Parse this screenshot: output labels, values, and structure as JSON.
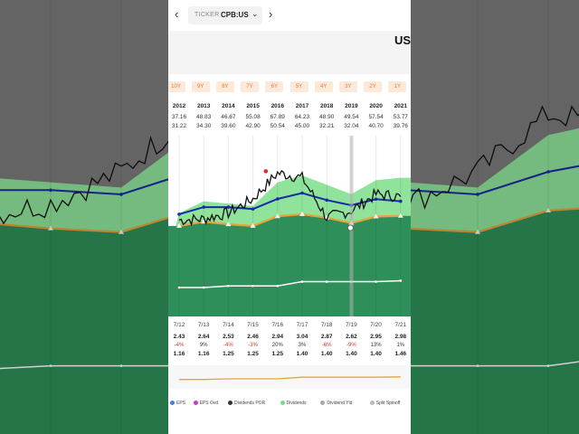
{
  "ticker": {
    "label": "TICKER",
    "value": "CPB:US"
  },
  "currency": "USD",
  "nav": {
    "prev": "‹",
    "next": "›",
    "caret": "⌄"
  },
  "chips": [
    "10Y",
    "9Y",
    "8Y",
    "7Y",
    "6Y",
    "5Y",
    "4Y",
    "3Y",
    "2Y",
    "1Y"
  ],
  "years": [
    "2012",
    "2013",
    "2014",
    "2015",
    "2016",
    "2017",
    "2018",
    "2019",
    "2020",
    "2021"
  ],
  "highs": [
    "37.16",
    "48.83",
    "46.67",
    "55.08",
    "67.89",
    "64.23",
    "48.90",
    "49.54",
    "57.54",
    "53.77"
  ],
  "lows": [
    "31.22",
    "34.30",
    "39.60",
    "42.90",
    "50.54",
    "45.00",
    "32.21",
    "32.04",
    "40.70",
    "39.76"
  ],
  "fiscal_dates": [
    "7/12",
    "7/13",
    "7/14",
    "7/15",
    "7/16",
    "7/17",
    "7/18",
    "7/19",
    "7/20",
    "7/21"
  ],
  "eps": [
    "2.43",
    "2.64",
    "2.53",
    "2.46",
    "2.94",
    "3.04",
    "2.87",
    "2.62",
    "2.95",
    "2.98"
  ],
  "eps_change": [
    "-4%",
    "9%",
    "-4%",
    "-3%",
    "20%",
    "3%",
    "-6%",
    "-9%",
    "13%",
    "1%"
  ],
  "dividends": [
    "1.16",
    "1.16",
    "1.25",
    "1.25",
    "1.25",
    "1.40",
    "1.40",
    "1.40",
    "1.40",
    "1.46"
  ],
  "legend": [
    "EPS",
    "EPS Ovd",
    "Dividends POR",
    "Dividends",
    "Dividend Yld",
    "Split Spinoff"
  ],
  "colors": {
    "price": "#111111",
    "pe_line": "#1a2aa8",
    "eps_line": "#e8a33c",
    "fair_value_band": "#8fe39a",
    "eps_area": "#2f8f5a",
    "dividend_line": "#ffffff",
    "chip_bg": "#fde9d9",
    "chip_text": "#e07b39"
  },
  "chart_data": {
    "type": "line",
    "x": [
      "2012",
      "2013",
      "2014",
      "2015",
      "2016",
      "2017",
      "2018",
      "2019",
      "2020",
      "2021"
    ],
    "ylim": [
      0,
      75
    ],
    "series": [
      {
        "values": [
          41,
          41.5,
          44,
          50,
          61,
          59,
          42,
          45,
          52,
          51
        ]
      },
      {
        "values": [
          43.5,
          46.5,
          46.5,
          45.7,
          50,
          52.5,
          49.5,
          47.3,
          49.9,
          49
        ]
      },
      {
        "values": [
          38.5,
          40.3,
          39.2,
          38.5,
          42.6,
          43.5,
          42,
          39.7,
          42.5,
          42.8
        ]
      },
      {
        "values": [
          44,
          49,
          48,
          47,
          57,
          60,
          56,
          52,
          58,
          59
        ]
      },
      {
        "values": [
          12.3,
          12.3,
          13,
          13,
          13,
          14.8,
          14.8,
          14.8,
          14.8,
          15.2
        ]
      }
    ]
  }
}
